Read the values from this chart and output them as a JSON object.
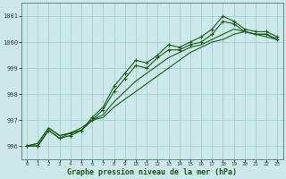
{
  "xlabel": "Graphe pression niveau de la mer (hPa)",
  "bg_color": "#cce8e8",
  "grid_color": "#99cccc",
  "line_color": "#1a5c1a",
  "xlim": [
    -0.5,
    23.5
  ],
  "ylim": [
    995.5,
    1001.5
  ],
  "yticks": [
    996,
    997,
    998,
    999,
    1000,
    1001
  ],
  "xticks": [
    0,
    1,
    2,
    3,
    4,
    5,
    6,
    7,
    8,
    9,
    10,
    11,
    12,
    13,
    14,
    15,
    16,
    17,
    18,
    19,
    20,
    21,
    22,
    23
  ],
  "series_with_markers": [
    [
      996.0,
      996.0,
      996.6,
      996.3,
      996.5,
      996.6,
      997.1,
      997.5,
      998.3,
      998.8,
      999.3,
      999.2,
      999.5,
      999.9,
      999.8,
      1000.0,
      1000.2,
      1000.5,
      1001.0,
      1000.8,
      1000.5,
      1000.4,
      1000.4,
      1000.2
    ],
    [
      996.0,
      996.0,
      996.6,
      996.3,
      996.4,
      996.6,
      997.0,
      997.4,
      998.1,
      998.6,
      999.1,
      999.0,
      999.4,
      999.7,
      999.7,
      999.9,
      1000.0,
      1000.3,
      1000.8,
      1000.7,
      1000.4,
      1000.3,
      1000.3,
      1000.1
    ]
  ],
  "series_no_markers": [
    [
      996.0,
      996.1,
      996.7,
      996.4,
      996.5,
      996.6,
      997.0,
      997.2,
      997.7,
      998.1,
      998.5,
      998.8,
      999.1,
      999.4,
      999.6,
      999.8,
      999.9,
      1000.1,
      1000.3,
      1000.5,
      1000.4,
      1000.3,
      1000.2,
      1000.1
    ],
    [
      996.0,
      996.1,
      996.7,
      996.4,
      996.5,
      996.7,
      997.0,
      997.1,
      997.5,
      997.8,
      998.1,
      998.4,
      998.7,
      999.0,
      999.3,
      999.6,
      999.8,
      1000.0,
      1000.1,
      1000.3,
      1000.4,
      1000.3,
      1000.3,
      1000.1
    ]
  ]
}
